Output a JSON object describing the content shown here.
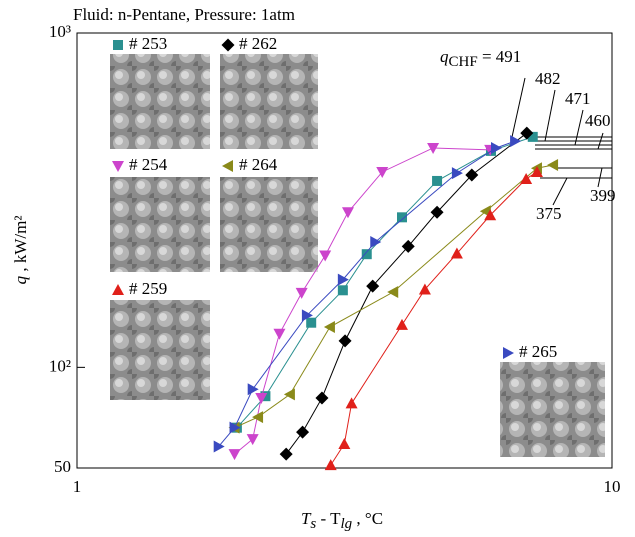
{
  "chart_data": {
    "type": "line",
    "title": "Fluid: n-Pentane, Pressure: 1atm",
    "xlabel": {
      "main": "T",
      "sub": "s",
      "main2": " - T",
      "sub2": "lg",
      "unit": " , °C"
    },
    "ylabel": {
      "main": "q",
      "unit": " , kW/m²"
    },
    "xscale": "log",
    "yscale": "log",
    "xlim": [
      1,
      10
    ],
    "ylim": [
      50,
      1000
    ],
    "xticks": [
      1,
      10
    ],
    "yticks": [
      50,
      {
        "value": 100,
        "label": "10²"
      },
      {
        "value": 1000,
        "label": "10³"
      }
    ],
    "series": [
      {
        "name": "# 253",
        "color": "#2a9090",
        "marker": "square",
        "x": [
          1.99,
          2.25,
          2.74,
          3.14,
          3.48,
          4.05,
          4.71,
          5.94,
          7.11
        ],
        "values": [
          66,
          82,
          136,
          170,
          218,
          281,
          361,
          444,
          489
        ]
      },
      {
        "name": "# 262",
        "color": "#000000",
        "marker": "diamond",
        "x": [
          2.46,
          2.64,
          2.87,
          3.17,
          3.57,
          4.16,
          4.71,
          5.47,
          6.93
        ],
        "values": [
          55,
          64,
          81,
          120,
          175,
          230,
          291,
          376,
          502
        ]
      },
      {
        "name": "# 254",
        "color": "#cc44cc",
        "marker": "triangle-down",
        "x": [
          1.97,
          2.13,
          2.21,
          2.39,
          2.63,
          2.91,
          3.21,
          3.72,
          4.63,
          5.92
        ],
        "values": [
          55,
          61,
          81,
          126,
          167,
          216,
          291,
          384,
          453,
          447
        ]
      },
      {
        "name": "# 264",
        "color": "#8a8a1a",
        "marker": "triangle-left",
        "x": [
          1.97,
          2.18,
          2.5,
          2.97,
          3.9,
          5.81,
          7.24,
          7.76
        ],
        "values": [
          66,
          71,
          83,
          132,
          168,
          293,
          394,
          403
        ]
      },
      {
        "name": "# 259",
        "color": "#e0201a",
        "marker": "triangle-up",
        "x": [
          2.98,
          3.16,
          3.26,
          4.05,
          4.47,
          5.13,
          5.92,
          6.91,
          7.24
        ],
        "values": [
          51,
          59,
          78,
          134,
          171,
          219,
          285,
          366,
          384
        ]
      },
      {
        "name": "# 265",
        "color": "#3a4ac0",
        "marker": "triangle-right",
        "x": [
          1.84,
          1.97,
          2.13,
          2.69,
          3.14,
          3.61,
          5.13,
          6.07,
          6.59
        ],
        "values": [
          58,
          66,
          86,
          143,
          183,
          237,
          381,
          453,
          475
        ]
      }
    ],
    "chf_label": {
      "main": "q",
      "sub": "CHF",
      "rest": " = 491"
    },
    "annotations": [
      "482",
      "471",
      "460",
      "375",
      "399"
    ]
  }
}
